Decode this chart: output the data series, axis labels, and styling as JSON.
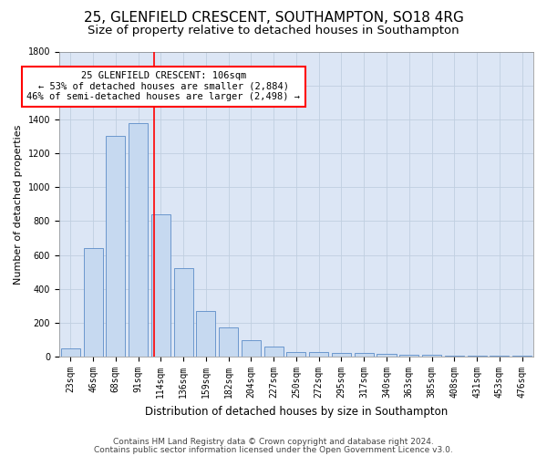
{
  "title1": "25, GLENFIELD CRESCENT, SOUTHAMPTON, SO18 4RG",
  "title2": "Size of property relative to detached houses in Southampton",
  "xlabel": "Distribution of detached houses by size in Southampton",
  "ylabel": "Number of detached properties",
  "categories": [
    "23sqm",
    "46sqm",
    "68sqm",
    "91sqm",
    "114sqm",
    "136sqm",
    "159sqm",
    "182sqm",
    "204sqm",
    "227sqm",
    "250sqm",
    "272sqm",
    "295sqm",
    "317sqm",
    "340sqm",
    "363sqm",
    "385sqm",
    "408sqm",
    "431sqm",
    "453sqm",
    "476sqm"
  ],
  "values": [
    50,
    640,
    1300,
    1380,
    840,
    525,
    270,
    175,
    100,
    60,
    30,
    30,
    25,
    20,
    15,
    10,
    10,
    5,
    5,
    5,
    5
  ],
  "bar_color": "#c6d9f0",
  "bar_edge_color": "#5b8cc8",
  "bar_width": 0.85,
  "ylim": [
    0,
    1800
  ],
  "yticks": [
    0,
    200,
    400,
    600,
    800,
    1000,
    1200,
    1400,
    1600,
    1800
  ],
  "red_line_x": 3.72,
  "annotation_text": "25 GLENFIELD CRESCENT: 106sqm\n← 53% of detached houses are smaller (2,884)\n46% of semi-detached houses are larger (2,498) →",
  "footer1": "Contains HM Land Registry data © Crown copyright and database right 2024.",
  "footer2": "Contains public sector information licensed under the Open Government Licence v3.0.",
  "bg_color": "#ffffff",
  "plot_bg_color": "#dce6f5",
  "grid_color": "#c0cfe0",
  "title1_fontsize": 11,
  "title2_fontsize": 9.5,
  "xlabel_fontsize": 8.5,
  "ylabel_fontsize": 8,
  "tick_fontsize": 7,
  "annot_fontsize": 7.5,
  "footer_fontsize": 6.5
}
